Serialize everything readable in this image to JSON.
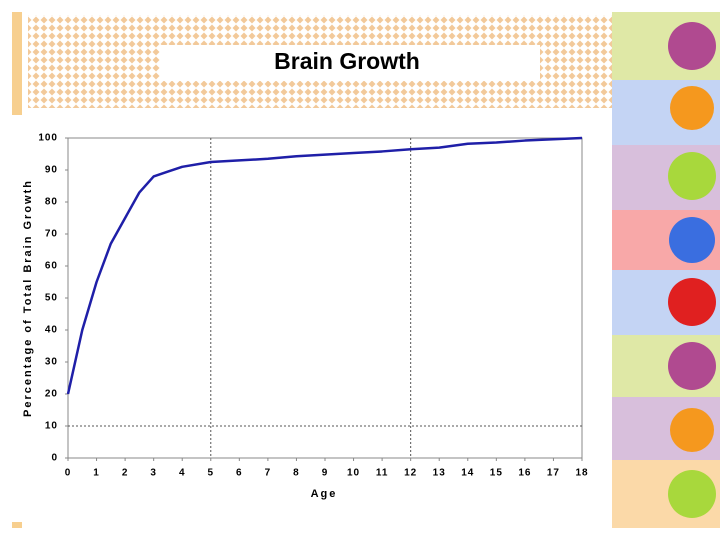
{
  "chart_data": {
    "type": "line",
    "title": "Brain Growth",
    "x_label": "Age",
    "y_label": "Percentage of Total Brain Growth",
    "x": [
      0,
      0.5,
      1,
      1.5,
      2,
      2.5,
      3,
      3.5,
      4,
      5,
      6,
      7,
      8,
      9,
      10,
      11,
      12,
      13,
      14,
      15,
      16,
      17,
      18
    ],
    "series": [
      {
        "color": "#1f1fa8",
        "values": [
          20,
          40,
          55,
          67,
          75,
          83,
          88,
          89.5,
          91,
          92.5,
          93,
          93.5,
          94.3,
          94.8,
          95.3,
          95.8,
          96.5,
          97,
          98.2,
          98.6,
          99.2,
          99.6,
          100
        ]
      }
    ],
    "xlim": [
      0,
      18
    ],
    "xticks": [
      0,
      1,
      2,
      3,
      4,
      5,
      6,
      7,
      8,
      9,
      10,
      11,
      12,
      13,
      14,
      15,
      16,
      17,
      18
    ],
    "ylim": [
      0,
      100
    ],
    "yticks": [
      0,
      10,
      20,
      30,
      40,
      50,
      60,
      70,
      80,
      90,
      100
    ],
    "reference_x": [
      5,
      12
    ],
    "reference_y": [
      10
    ]
  }
}
